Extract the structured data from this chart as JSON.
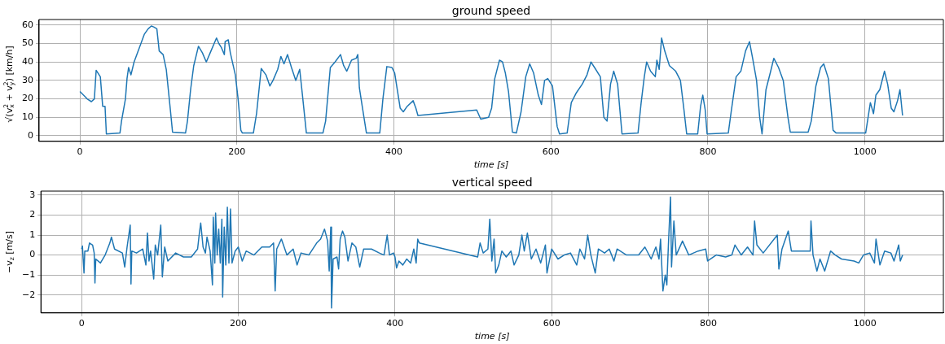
{
  "chart_data": [
    {
      "type": "line",
      "title": "ground speed",
      "xlabel": "time [s]",
      "ylabel": "√(v$_{x}$$^{2}$ + v$_{y}$$^{2}$) [km/h]",
      "color": "#1f77b4",
      "grid": true,
      "marker": "none",
      "line_style": "solid",
      "xlim": [
        -52,
        1100
      ],
      "xticks": [
        0,
        200,
        400,
        600,
        800,
        1000
      ],
      "ylim": [
        -3,
        63
      ],
      "yticks": [
        0,
        10,
        20,
        30,
        40,
        50,
        60
      ],
      "x": [
        0,
        7,
        9.2,
        14.6,
        18.4,
        20.7,
        26,
        29,
        32,
        33.7,
        51,
        53,
        58,
        60,
        62,
        65,
        69,
        76,
        82,
        87,
        91,
        94,
        98,
        101,
        106,
        110,
        115,
        118,
        134.5,
        137,
        141,
        145,
        151,
        156,
        161,
        166,
        174,
        177,
        180,
        184,
        185,
        189,
        191.6,
        198,
        201.5,
        205,
        207,
        221,
        225,
        231,
        237,
        242,
        246,
        252,
        256,
        260,
        264.5,
        269.5,
        275,
        280,
        283.5,
        288.5,
        309.6,
        313,
        319,
        325,
        332,
        336,
        340,
        346,
        352,
        354,
        356,
        360,
        365,
        382,
        386,
        391,
        397.5,
        401,
        408,
        412,
        417,
        424.5,
        428,
        430.6,
        505.5,
        510.6,
        520.6,
        524.5,
        528.5,
        534.5,
        538.4,
        542,
        546,
        551,
        556,
        562,
        568,
        573,
        578,
        584,
        588,
        592,
        596,
        602,
        608,
        611,
        620.7,
        626,
        632,
        640,
        646,
        651,
        655.6,
        663,
        667.5,
        671.5,
        676,
        680,
        685,
        690.6,
        711,
        715,
        719,
        722,
        727,
        733,
        735,
        738,
        741,
        745,
        751,
        759,
        765,
        769,
        773,
        787,
        790.7,
        793.5,
        796.6,
        799,
        826,
        830,
        836,
        842,
        848,
        853,
        857,
        862,
        866,
        869,
        874,
        880,
        884,
        890,
        896,
        902,
        905,
        927.7,
        931.7,
        937.6,
        943.6,
        947.6,
        953.5,
        959.5,
        963.5,
        1001,
        1007,
        1011,
        1014,
        1019,
        1025,
        1029,
        1033.6,
        1037,
        1041.6,
        1044.7,
        1048
      ],
      "values": [
        24,
        21,
        20,
        18.5,
        20,
        35.5,
        32,
        16,
        16,
        1,
        1.5,
        8,
        20,
        31,
        37,
        33,
        40,
        48,
        55,
        58,
        59.5,
        59,
        58,
        46,
        44,
        36,
        15,
        2,
        1.5,
        8,
        25,
        38,
        48.5,
        45,
        40,
        45,
        53,
        50,
        48,
        44,
        51,
        52,
        45,
        33,
        20,
        3,
        1.5,
        1.5,
        12,
        36.5,
        33,
        27,
        30,
        36,
        43,
        39,
        44,
        37,
        30,
        36,
        22,
        1.5,
        1.5,
        8,
        37,
        40,
        44,
        38,
        35,
        41,
        42,
        44,
        26,
        15,
        1.5,
        1.5,
        20,
        37.5,
        37,
        34,
        15,
        13,
        16,
        19,
        15,
        11,
        14,
        9,
        10,
        15,
        31,
        41,
        40,
        34,
        24,
        2,
        1.5,
        13,
        32,
        39,
        34,
        22,
        17,
        30,
        31,
        27,
        5,
        1,
        1.5,
        18,
        23,
        28,
        33,
        40,
        37,
        32,
        10,
        8,
        28,
        35,
        28,
        1,
        1.5,
        18,
        32,
        40,
        35,
        32,
        41,
        36,
        53,
        46,
        38,
        35,
        30,
        16,
        1,
        1,
        16,
        22,
        14,
        1,
        1.5,
        14,
        32,
        35,
        46,
        51,
        42,
        30,
        10,
        1,
        25,
        35,
        42,
        37,
        30,
        10,
        2,
        2,
        8,
        27,
        37,
        39,
        31,
        3,
        1.5,
        1.5,
        18,
        12,
        22,
        25,
        35,
        28,
        15,
        13,
        19,
        25,
        11
      ]
    },
    {
      "type": "line",
      "title": "vertical speed",
      "xlabel": "time [s]",
      "ylabel": "−v$_{z}$ [m/s]",
      "color": "#1f77b4",
      "grid": true,
      "marker": "none",
      "line_style": "solid",
      "xlim": [
        -52,
        1100
      ],
      "xticks": [
        0,
        200,
        400,
        600,
        800,
        1000
      ],
      "ylim": [
        -2.9,
        3.2
      ],
      "yticks": [
        -2,
        -1,
        0,
        1,
        2,
        3
      ],
      "x": [
        0,
        1,
        3,
        4,
        8,
        10,
        14,
        16,
        17,
        18,
        24,
        30,
        36,
        38,
        42,
        52,
        55,
        58,
        62,
        63,
        64,
        70,
        78,
        82,
        84,
        86,
        88,
        92,
        94,
        97,
        101,
        103,
        106,
        110,
        120,
        130,
        140,
        148,
        150,
        152,
        155,
        158,
        160,
        164,
        167,
        168,
        170,
        171,
        173,
        175,
        177,
        179,
        180,
        182,
        184,
        186,
        188,
        190,
        192,
        196,
        200,
        205,
        210,
        220,
        230,
        240,
        245,
        247,
        249,
        255,
        262,
        270,
        275,
        280,
        290,
        300,
        305,
        310,
        314,
        316,
        318,
        319,
        321,
        326,
        328,
        330,
        333,
        336,
        340,
        345,
        350,
        355,
        360,
        370,
        380,
        386,
        390,
        393,
        398,
        400,
        402,
        405,
        410,
        415,
        420,
        424,
        427,
        429,
        431,
        505.5,
        508.6,
        512.6,
        518.6,
        521,
        523.6,
        526.5,
        528.5,
        532.5,
        536.4,
        542,
        548,
        552,
        558,
        562,
        565,
        569,
        574,
        580,
        586,
        592,
        594,
        600,
        608,
        616,
        624,
        632,
        636,
        642,
        646,
        650,
        655.6,
        659.6,
        667.5,
        673.5,
        679.5,
        683.5,
        695.5,
        711,
        719,
        727,
        733,
        737,
        739,
        742,
        745,
        747,
        749,
        751.7,
        753,
        756,
        759,
        767,
        775,
        787,
        796.6,
        799,
        810,
        822,
        830,
        834,
        842,
        850,
        857,
        859,
        862,
        870,
        888,
        890,
        894,
        902,
        906,
        918,
        930,
        931,
        933.6,
        938.6,
        942.5,
        948.5,
        956,
        962,
        970,
        986,
        992,
        998,
        1006,
        1012,
        1014,
        1019,
        1025,
        1033,
        1037,
        1043,
        1045,
        1048
      ],
      "values": [
        0.3,
        0.45,
        -0.9,
        0.2,
        0.2,
        0.6,
        0.5,
        0.1,
        -1.4,
        -0.2,
        -0.4,
        0,
        0.6,
        0.9,
        0.3,
        0.1,
        -0.6,
        0.4,
        1.5,
        -1.45,
        0.2,
        0.1,
        0.3,
        -0.5,
        1.1,
        -0.3,
        0.2,
        -1.2,
        0.5,
        0,
        1.5,
        -1.1,
        0.4,
        -0.3,
        0.1,
        -0.1,
        -0.1,
        0.3,
        1,
        1.6,
        0.4,
        0.1,
        0.9,
        0.2,
        -1.5,
        1.9,
        -0.4,
        2.1,
        0,
        1.3,
        -0.4,
        1.8,
        -2.1,
        1.4,
        -0.5,
        2.4,
        -0.4,
        2.3,
        -0.4,
        0.2,
        0.4,
        -0.3,
        0.2,
        0,
        0.4,
        0.4,
        0.6,
        -1.8,
        0.3,
        0.8,
        0,
        0.3,
        -0.5,
        0.1,
        0,
        0.6,
        0.8,
        1.3,
        0.7,
        -0.8,
        1.4,
        -2.65,
        -0.2,
        -0.1,
        -0.7,
        0.8,
        1.2,
        0.9,
        -0.3,
        0.6,
        0.4,
        -0.6,
        0.3,
        0.3,
        0.1,
        0,
        1,
        0,
        0.1,
        -0.1,
        -0.65,
        -0.3,
        -0.5,
        -0.2,
        -0.4,
        0.3,
        -0.4,
        0.8,
        0.6,
        -0.1,
        0.6,
        0.1,
        0.3,
        1.8,
        -0.3,
        0.8,
        -0.9,
        -0.5,
        0.2,
        -0.1,
        0.2,
        -0.5,
        0,
        1,
        0.2,
        1.1,
        -0.2,
        0.3,
        -0.4,
        0.5,
        -0.9,
        0.3,
        -0.2,
        0,
        0.1,
        -0.5,
        0.3,
        -0.2,
        1,
        0,
        -0.9,
        0.3,
        0.1,
        0.3,
        -0.3,
        0.3,
        0,
        0,
        0.4,
        -0.2,
        0.4,
        -0.2,
        0.8,
        -1.8,
        -1,
        -1.5,
        0.5,
        2.9,
        -0.6,
        1.7,
        0,
        0.7,
        0,
        0.2,
        0.3,
        -0.3,
        0,
        -0.1,
        0,
        0.5,
        0,
        0.4,
        0,
        1.7,
        0.5,
        0.1,
        1,
        -0.7,
        0.3,
        1.2,
        0.2,
        0.2,
        0.2,
        1.7,
        0,
        -0.8,
        -0.2,
        -0.8,
        0.2,
        0,
        -0.2,
        -0.3,
        -0.4,
        0,
        0.1,
        -0.4,
        0.8,
        -0.5,
        0.2,
        0.1,
        -0.3,
        0.5,
        -0.3,
        0
      ]
    }
  ]
}
